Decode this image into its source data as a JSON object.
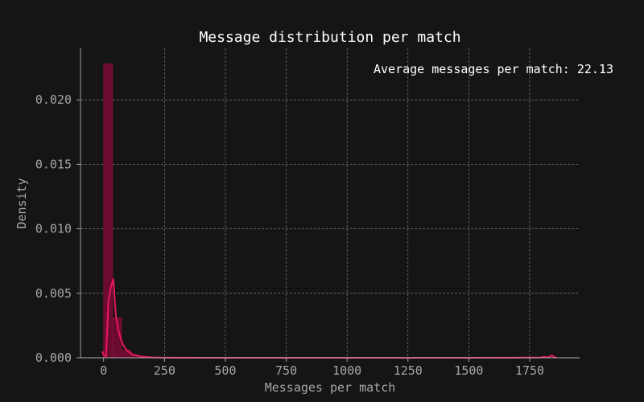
{
  "chart_data": {
    "type": "bar",
    "title": "Message distribution per match",
    "xlabel": "Messages per match",
    "ylabel": "Density",
    "annotation": "Average messages per match: 22.13",
    "xlim": [
      -95,
      1955
    ],
    "ylim": [
      0,
      0.024
    ],
    "x_ticks": [
      {
        "value": 0,
        "label": "0"
      },
      {
        "value": 250,
        "label": "250"
      },
      {
        "value": 500,
        "label": "500"
      },
      {
        "value": 750,
        "label": "750"
      },
      {
        "value": 1000,
        "label": "1000"
      },
      {
        "value": 1250,
        "label": "1250"
      },
      {
        "value": 1500,
        "label": "1500"
      },
      {
        "value": 1750,
        "label": "1750"
      }
    ],
    "y_ticks": [
      {
        "value": 0,
        "label": "0.000"
      },
      {
        "value": 0.005,
        "label": "0.005"
      },
      {
        "value": 0.01,
        "label": "0.010"
      },
      {
        "value": 0.015,
        "label": "0.015"
      },
      {
        "value": 0.02,
        "label": "0.020"
      }
    ],
    "grid": true,
    "histogram": {
      "bin_width": 37,
      "bins": [
        {
          "x0": 0,
          "x1": 37,
          "density": 0.0228
        },
        {
          "x0": 37,
          "x1": 74,
          "density": 0.0031
        },
        {
          "x0": 74,
          "x1": 111,
          "density": 0.0006
        },
        {
          "x0": 111,
          "x1": 148,
          "density": 0.0002
        },
        {
          "x0": 148,
          "x1": 185,
          "density": 8e-05
        },
        {
          "x0": 185,
          "x1": 222,
          "density": 4e-05
        }
      ]
    },
    "kde": {
      "x": [
        -5,
        0,
        10,
        20,
        30,
        40,
        50,
        60,
        70,
        80,
        90,
        100,
        120,
        150,
        200,
        250,
        300,
        400,
        500,
        750,
        1000,
        1250,
        1500,
        1700,
        1750,
        1790,
        1810,
        1825,
        1840,
        1850,
        1860
      ],
      "y": [
        0.0005,
        0.0002,
        0.0001,
        0.0045,
        0.0055,
        0.0061,
        0.0033,
        0.0022,
        0.0015,
        0.001,
        0.0007,
        0.0005,
        0.00025,
        0.0001,
        3e-05,
        1e-05,
        5e-06,
        2e-06,
        1e-06,
        5e-07,
        5e-07,
        5e-07,
        5e-07,
        1e-05,
        2e-05,
        1e-05,
        8e-05,
        2e-05,
        0.00018,
        8e-05,
        0.0
      ]
    },
    "colors": {
      "background": "#151515",
      "bar_fill": "#6a0c30",
      "bar_stroke": "#8a1040",
      "kde_line": "#e8175d"
    }
  }
}
